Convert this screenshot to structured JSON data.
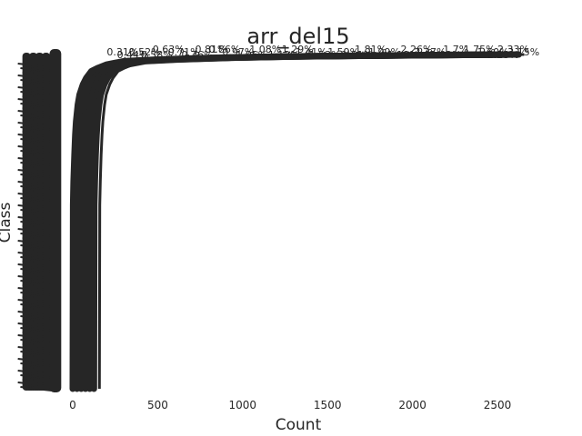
{
  "chart_data": {
    "type": "line",
    "title": "arr_del15",
    "xlabel": "Count",
    "ylabel": "Class",
    "xlim": [
      -300,
      2800
    ],
    "xticks": [
      0,
      500,
      1000,
      1500,
      2000,
      2500
    ],
    "grid": false,
    "legend": "none",
    "series_color": "#262626",
    "curve_offsets": [
      0,
      25,
      50,
      75,
      100,
      125
    ],
    "curve_shape": {
      "x": [
        0,
        2,
        5,
        10,
        15,
        20,
        30,
        40,
        60,
        80,
        110,
        150,
        200,
        300,
        500,
        800,
        1200,
        1800,
        2500
      ],
      "y": [
        0.0,
        0.55,
        0.62,
        0.7,
        0.76,
        0.8,
        0.85,
        0.88,
        0.91,
        0.93,
        0.95,
        0.96,
        0.97,
        0.98,
        0.985,
        0.99,
        0.994,
        0.997,
        1.0
      ]
    },
    "left_clutter_x": [
      -275,
      -260,
      -248,
      -235,
      -222,
      -210,
      -198,
      -185,
      -172,
      -160,
      -150
    ],
    "dark_column_x": [
      -110,
      -100
    ],
    "percent_labels": [
      {
        "x": 2300,
        "text": "1.75%"
      },
      {
        "x": 2380,
        "text": "1.60%"
      },
      {
        "x": 2440,
        "text": "2.23%"
      },
      {
        "x": 2500,
        "text": "2.33%"
      },
      {
        "x": 2560,
        "text": "3.15%"
      },
      {
        "x": 1850,
        "text": "1.18%"
      },
      {
        "x": 1930,
        "text": "2.26%"
      },
      {
        "x": 2010,
        "text": "2.37%"
      },
      {
        "x": 2100,
        "text": "2.63%"
      },
      {
        "x": 2180,
        "text": "1.7%"
      },
      {
        "x": 1500,
        "text": "1.59%"
      },
      {
        "x": 1580,
        "text": "1.61%"
      },
      {
        "x": 1660,
        "text": "1.81%"
      },
      {
        "x": 1740,
        "text": "1.99%"
      },
      {
        "x": 1150,
        "text": "1.12%"
      },
      {
        "x": 1230,
        "text": "1.29%"
      },
      {
        "x": 1310,
        "text": "1.41%"
      },
      {
        "x": 1390,
        "text": "1.53%"
      },
      {
        "x": 800,
        "text": "0.86%"
      },
      {
        "x": 880,
        "text": "0.97%"
      },
      {
        "x": 960,
        "text": "1.05%"
      },
      {
        "x": 1040,
        "text": "1.08%"
      },
      {
        "x": 560,
        "text": "0.71%"
      },
      {
        "x": 640,
        "text": "0.76%"
      },
      {
        "x": 720,
        "text": "0.81%"
      },
      {
        "x": 330,
        "text": "0.52%"
      },
      {
        "x": 400,
        "text": "0.58%"
      },
      {
        "x": 470,
        "text": "0.63%"
      },
      {
        "x": 200,
        "text": "0.31%"
      },
      {
        "x": 260,
        "text": "0.44%"
      }
    ]
  }
}
